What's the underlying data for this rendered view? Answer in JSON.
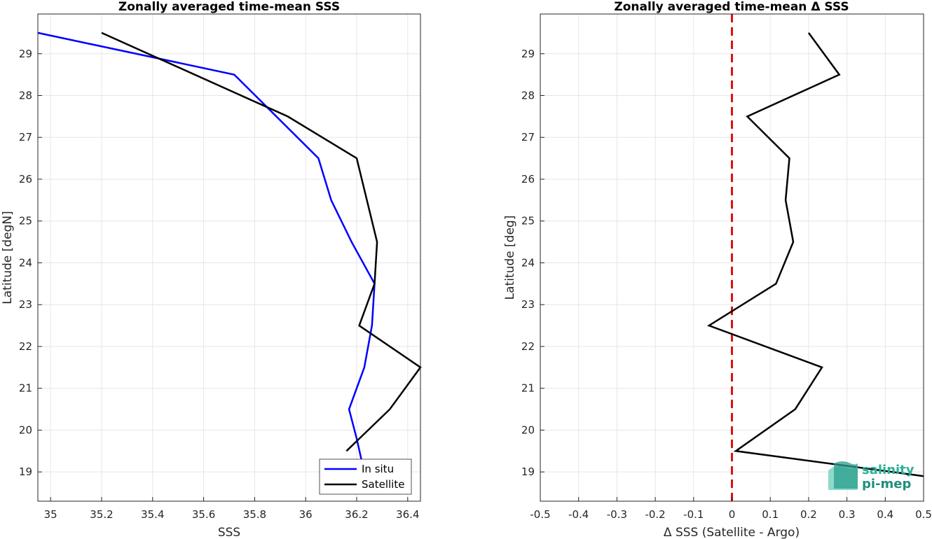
{
  "chart_data": [
    {
      "type": "line",
      "title": "Zonally averaged time-mean SSS",
      "xlabel": "SSS",
      "ylabel": "Latitude [degN]",
      "xlim": [
        34.95,
        36.45
      ],
      "ylim": [
        18.3,
        29.95
      ],
      "xticks": [
        "35",
        "35.2",
        "35.4",
        "35.6",
        "35.8",
        "36",
        "36.2",
        "36.4"
      ],
      "yticks": [
        "19",
        "20",
        "21",
        "22",
        "23",
        "24",
        "25",
        "26",
        "27",
        "28",
        "29"
      ],
      "grid": true,
      "legend": "bottom-right",
      "series": [
        {
          "name": "In situ",
          "color": "#0000ff",
          "x": [
            34.95,
            35.72,
            36.05,
            36.1,
            36.18,
            36.27,
            36.26,
            36.23,
            36.17,
            36.2,
            36.22
          ],
          "y": [
            29.5,
            28.5,
            26.5,
            25.5,
            24.5,
            23.5,
            22.5,
            21.5,
            20.5,
            19.8,
            19.25
          ]
        },
        {
          "name": "Satellite",
          "color": "#000000",
          "x": [
            35.2,
            35.93,
            36.2,
            36.28,
            36.27,
            36.21,
            36.45,
            36.33,
            36.16
          ],
          "y": [
            29.5,
            27.5,
            26.5,
            24.5,
            23.5,
            22.5,
            21.5,
            20.5,
            19.5
          ]
        }
      ]
    },
    {
      "type": "line",
      "title": "Zonally averaged time-mean Δ SSS",
      "xlabel": "Δ SSS (Satellite - Argo)",
      "ylabel": "Latitude [deg]",
      "xlim": [
        -0.5,
        0.5
      ],
      "ylim": [
        18.3,
        29.95
      ],
      "xticks": [
        "-0.5",
        "-0.4",
        "-0.3",
        "-0.2",
        "-0.1",
        "0",
        "0.1",
        "0.2",
        "0.3",
        "0.4",
        "0.5"
      ],
      "yticks": [
        "19",
        "20",
        "21",
        "22",
        "23",
        "24",
        "25",
        "26",
        "27",
        "28",
        "29"
      ],
      "grid": true,
      "reference_line": {
        "x": 0,
        "color": "#dd1111",
        "style": "dashed"
      },
      "series": [
        {
          "color": "#000000",
          "x": [
            0.2,
            0.28,
            0.04,
            0.15,
            0.14,
            0.16,
            0.115,
            -0.06,
            0.235,
            0.165,
            0.01,
            0.5
          ],
          "y": [
            29.5,
            28.5,
            27.5,
            26.5,
            25.5,
            24.5,
            23.5,
            22.5,
            21.5,
            20.5,
            19.5,
            18.9
          ]
        }
      ]
    }
  ],
  "logo": {
    "line1": "salinity",
    "line2": "pi-mep"
  }
}
